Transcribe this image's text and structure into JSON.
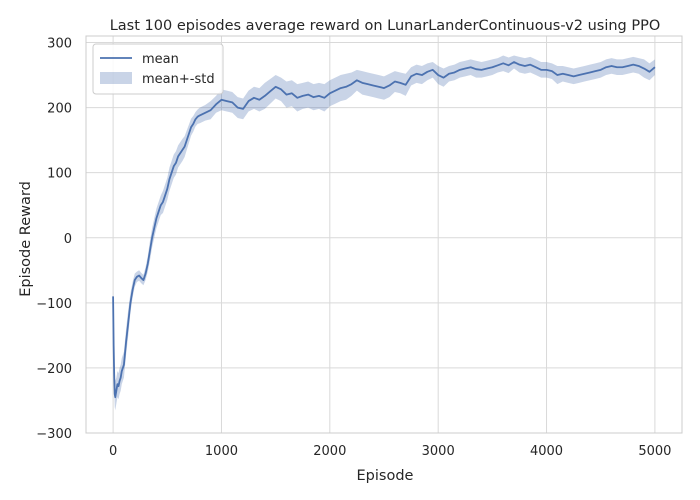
{
  "chart_data": {
    "type": "line",
    "title": "Last 100 episodes average reward on LunarLanderContinuous-v2 using PPO",
    "xlabel": "Episode",
    "ylabel": "Episode Reward",
    "xlim": [
      -250,
      5250
    ],
    "ylim": [
      -300,
      310
    ],
    "xticks": [
      0,
      1000,
      2000,
      3000,
      4000,
      5000
    ],
    "yticks": [
      -300,
      -200,
      -100,
      0,
      100,
      200,
      300
    ],
    "grid": true,
    "legend_position": "top-left",
    "series": [
      {
        "name": "mean",
        "kind": "line",
        "color": "#4c72b0",
        "x": [
          0,
          5,
          10,
          15,
          20,
          30,
          40,
          50,
          60,
          70,
          80,
          100,
          120,
          140,
          160,
          180,
          200,
          220,
          240,
          260,
          280,
          300,
          320,
          340,
          360,
          380,
          400,
          420,
          440,
          460,
          480,
          500,
          520,
          540,
          560,
          580,
          600,
          620,
          640,
          660,
          680,
          700,
          720,
          740,
          760,
          780,
          800,
          850,
          900,
          950,
          1000,
          1050,
          1100,
          1150,
          1200,
          1250,
          1300,
          1350,
          1400,
          1450,
          1500,
          1550,
          1600,
          1650,
          1700,
          1750,
          1800,
          1850,
          1900,
          1950,
          2000,
          2050,
          2100,
          2150,
          2200,
          2250,
          2300,
          2350,
          2400,
          2450,
          2500,
          2550,
          2600,
          2650,
          2700,
          2750,
          2800,
          2850,
          2900,
          2950,
          3000,
          3050,
          3100,
          3150,
          3200,
          3250,
          3300,
          3350,
          3400,
          3450,
          3500,
          3550,
          3600,
          3650,
          3700,
          3750,
          3800,
          3850,
          3900,
          3950,
          4000,
          4050,
          4100,
          4150,
          4200,
          4250,
          4300,
          4350,
          4400,
          4450,
          4500,
          4550,
          4600,
          4650,
          4700,
          4750,
          4800,
          4850,
          4900,
          4950,
          5000
        ],
        "y": [
          -90,
          -165,
          -210,
          -240,
          -245,
          -235,
          -225,
          -228,
          -220,
          -215,
          -205,
          -195,
          -160,
          -130,
          -100,
          -80,
          -65,
          -60,
          -58,
          -62,
          -65,
          -55,
          -40,
          -20,
          0,
          15,
          30,
          40,
          50,
          55,
          65,
          75,
          90,
          100,
          110,
          115,
          125,
          130,
          135,
          140,
          150,
          160,
          170,
          175,
          182,
          186,
          188,
          192,
          196,
          205,
          212,
          210,
          208,
          200,
          198,
          210,
          215,
          212,
          218,
          225,
          232,
          228,
          220,
          222,
          215,
          218,
          220,
          216,
          218,
          215,
          222,
          226,
          230,
          232,
          236,
          242,
          238,
          236,
          234,
          232,
          230,
          234,
          240,
          238,
          235,
          248,
          252,
          250,
          255,
          258,
          250,
          246,
          252,
          254,
          258,
          260,
          262,
          259,
          258,
          260,
          262,
          265,
          268,
          265,
          270,
          266,
          264,
          266,
          262,
          258,
          258,
          256,
          250,
          252,
          250,
          248,
          250,
          252,
          254,
          256,
          258,
          262,
          264,
          262,
          262,
          264,
          266,
          264,
          260,
          255,
          262
        ]
      },
      {
        "name": "mean+-std",
        "kind": "band",
        "color": "#4c72b0",
        "opacity": 0.3,
        "x": [
          0,
          5,
          10,
          15,
          20,
          30,
          40,
          50,
          60,
          70,
          80,
          100,
          120,
          140,
          160,
          180,
          200,
          220,
          240,
          260,
          280,
          300,
          320,
          340,
          360,
          380,
          400,
          420,
          440,
          460,
          480,
          500,
          520,
          540,
          560,
          580,
          600,
          620,
          640,
          660,
          680,
          700,
          720,
          740,
          760,
          780,
          800,
          850,
          900,
          950,
          1000,
          1050,
          1100,
          1150,
          1200,
          1250,
          1300,
          1350,
          1400,
          1450,
          1500,
          1550,
          1600,
          1650,
          1700,
          1750,
          1800,
          1850,
          1900,
          1950,
          2000,
          2050,
          2100,
          2150,
          2200,
          2250,
          2300,
          2350,
          2400,
          2450,
          2500,
          2550,
          2600,
          2650,
          2700,
          2750,
          2800,
          2850,
          2900,
          2950,
          3000,
          3050,
          3100,
          3150,
          3200,
          3250,
          3300,
          3350,
          3400,
          3450,
          3500,
          3550,
          3600,
          3650,
          3700,
          3750,
          3800,
          3850,
          3900,
          3950,
          4000,
          4050,
          4100,
          4150,
          4200,
          4250,
          4300,
          4350,
          4400,
          4450,
          4500,
          4550,
          4600,
          4650,
          4700,
          4750,
          4800,
          4850,
          4900,
          4950,
          5000
        ],
        "upper": [
          -80,
          -150,
          -190,
          -215,
          -220,
          -215,
          -205,
          -208,
          -200,
          -195,
          -185,
          -175,
          -140,
          -110,
          -85,
          -68,
          -55,
          -52,
          -50,
          -54,
          -57,
          -45,
          -28,
          -5,
          15,
          30,
          45,
          55,
          65,
          72,
          82,
          92,
          108,
          118,
          128,
          133,
          142,
          147,
          152,
          156,
          165,
          174,
          183,
          187,
          193,
          197,
          200,
          204,
          210,
          218,
          228,
          226,
          224,
          216,
          214,
          226,
          232,
          230,
          238,
          244,
          250,
          246,
          240,
          242,
          236,
          238,
          240,
          236,
          238,
          236,
          242,
          246,
          250,
          252,
          254,
          258,
          256,
          254,
          252,
          250,
          248,
          252,
          256,
          254,
          252,
          262,
          266,
          264,
          268,
          270,
          264,
          260,
          264,
          266,
          270,
          272,
          274,
          272,
          270,
          272,
          274,
          276,
          280,
          277,
          280,
          278,
          276,
          278,
          274,
          270,
          270,
          268,
          264,
          264,
          262,
          260,
          262,
          264,
          266,
          268,
          270,
          274,
          276,
          274,
          274,
          276,
          278,
          276,
          274,
          268,
          274
        ],
        "lower": [
          -100,
          -180,
          -230,
          -260,
          -265,
          -255,
          -245,
          -248,
          -240,
          -235,
          -225,
          -215,
          -180,
          -150,
          -115,
          -92,
          -75,
          -68,
          -66,
          -70,
          -73,
          -65,
          -52,
          -35,
          -15,
          0,
          15,
          25,
          35,
          38,
          48,
          58,
          72,
          82,
          92,
          97,
          108,
          113,
          118,
          124,
          135,
          146,
          157,
          163,
          171,
          175,
          176,
          180,
          182,
          192,
          196,
          194,
          192,
          184,
          182,
          194,
          198,
          194,
          198,
          206,
          214,
          210,
          200,
          202,
          194,
          198,
          200,
          196,
          198,
          194,
          202,
          206,
          210,
          212,
          218,
          226,
          220,
          218,
          216,
          214,
          212,
          216,
          224,
          222,
          218,
          234,
          238,
          236,
          242,
          246,
          236,
          232,
          240,
          242,
          246,
          248,
          250,
          246,
          246,
          248,
          250,
          254,
          256,
          253,
          260,
          254,
          252,
          254,
          250,
          246,
          246,
          244,
          236,
          240,
          238,
          236,
          238,
          240,
          242,
          244,
          246,
          250,
          252,
          250,
          250,
          252,
          254,
          252,
          246,
          242,
          250
        ]
      }
    ]
  }
}
